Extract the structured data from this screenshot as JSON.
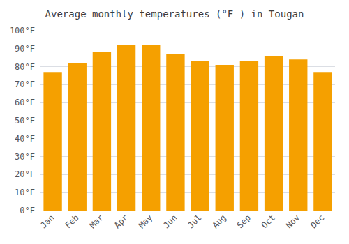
{
  "chart_data": {
    "type": "bar",
    "title": "Average monthly temperatures (°F ) in Tougan",
    "categories": [
      "Jan",
      "Feb",
      "Mar",
      "Apr",
      "May",
      "Jun",
      "Jul",
      "Aug",
      "Sep",
      "Oct",
      "Nov",
      "Dec"
    ],
    "values": [
      77,
      82,
      88,
      92,
      92,
      87,
      83,
      81,
      83,
      86,
      84,
      77
    ],
    "color": "#F5A000",
    "ylim": [
      0,
      100
    ],
    "yticks": [
      {
        "value": 0,
        "label": "0°F"
      },
      {
        "value": 10,
        "label": "10°F"
      },
      {
        "value": 20,
        "label": "20°F"
      },
      {
        "value": 30,
        "label": "30°F"
      },
      {
        "value": 40,
        "label": "40°F"
      },
      {
        "value": 50,
        "label": "50°F"
      },
      {
        "value": 60,
        "label": "60°F"
      },
      {
        "value": 70,
        "label": "70°F"
      },
      {
        "value": 80,
        "label": "80°F"
      },
      {
        "value": 90,
        "label": "90°F"
      },
      {
        "value": 100,
        "label": "100°F"
      }
    ],
    "grid": true
  }
}
